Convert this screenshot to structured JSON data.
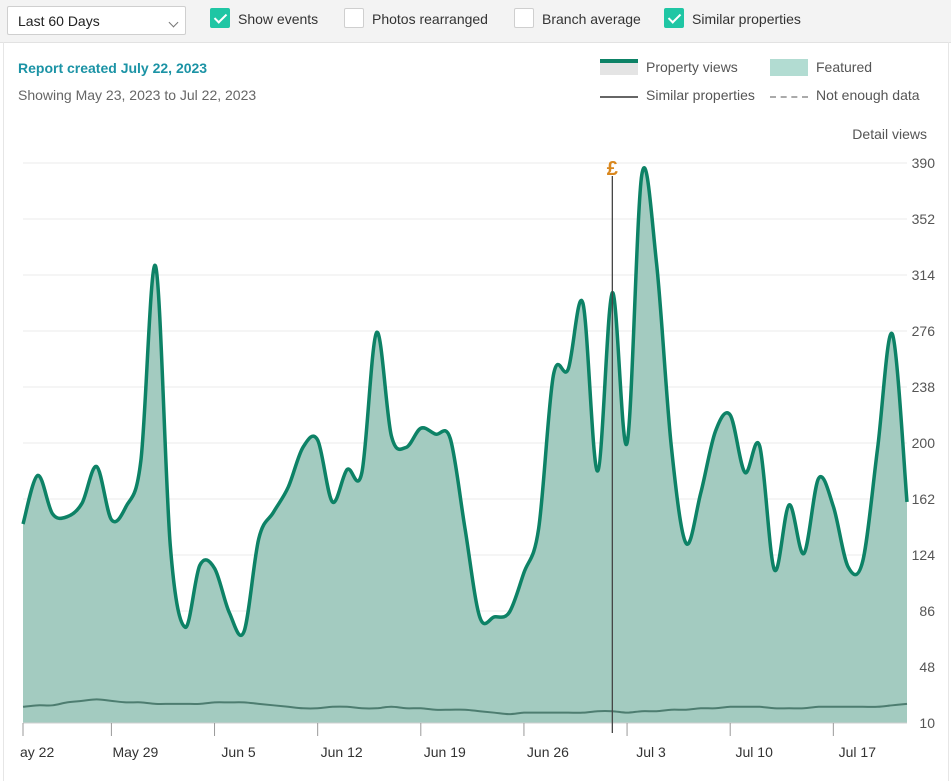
{
  "toolbar": {
    "period_select": "Last 60 Days",
    "checkboxes": [
      {
        "label": "Show events",
        "checked": true
      },
      {
        "label": "Photos rearranged",
        "checked": false
      },
      {
        "label": "Branch average",
        "checked": false
      },
      {
        "label": "Similar properties",
        "checked": true
      }
    ]
  },
  "header": {
    "report_created": "Report created July 22, 2023",
    "showing": "Showing May 23, 2023 to Jul 22, 2023"
  },
  "legend": {
    "property_views": "Property views",
    "featured": "Featured",
    "similar_properties": "Similar properties",
    "not_enough_data": "Not enough data"
  },
  "detail_views_label": "Detail views",
  "event_marker": {
    "symbol": "£",
    "date": "Jul 2"
  },
  "colors": {
    "accent": "#1fc6a4",
    "line": "#0d8266",
    "area": "#a3cbc0",
    "event": "#d9871e",
    "title": "#1b93a5"
  },
  "chart_data": {
    "type": "area",
    "ylabel": "Detail views",
    "y_ticks": [
      390,
      352,
      314,
      276,
      238,
      200,
      162,
      124,
      86,
      48,
      10
    ],
    "ylim": [
      10,
      390
    ],
    "x_tick_labels": [
      "ay 22",
      "May 29",
      "Jun 5",
      "Jun 12",
      "Jun 19",
      "Jun 26",
      "Jul 3",
      "Jul 10",
      "Jul 17"
    ],
    "x_start": "May 23",
    "series": [
      {
        "name": "Property views",
        "values": [
          145,
          178,
          152,
          150,
          159,
          184,
          148,
          157,
          188,
          320,
          130,
          75,
          117,
          115,
          85,
          72,
          135,
          153,
          170,
          197,
          202,
          160,
          182,
          180,
          275,
          205,
          197,
          210,
          206,
          203,
          142,
          82,
          82,
          85,
          112,
          142,
          246,
          250,
          295,
          181,
          302,
          200,
          382,
          322,
          198,
          132,
          166,
          208,
          219,
          180,
          198,
          114,
          158,
          125,
          176,
          157,
          116,
          120,
          196,
          274,
          160
        ]
      },
      {
        "name": "Similar properties",
        "values": [
          21,
          22,
          22,
          24,
          25,
          26,
          25,
          24,
          24,
          23,
          23,
          23,
          23,
          24,
          24,
          24,
          23,
          22,
          21,
          20,
          20,
          21,
          21,
          20,
          20,
          21,
          20,
          20,
          19,
          19,
          19,
          18,
          17,
          16,
          17,
          17,
          17,
          17,
          17,
          18,
          18,
          17,
          18,
          18,
          19,
          19,
          20,
          20,
          21,
          21,
          21,
          20,
          20,
          20,
          21,
          21,
          21,
          21,
          21,
          22,
          23
        ]
      }
    ]
  }
}
